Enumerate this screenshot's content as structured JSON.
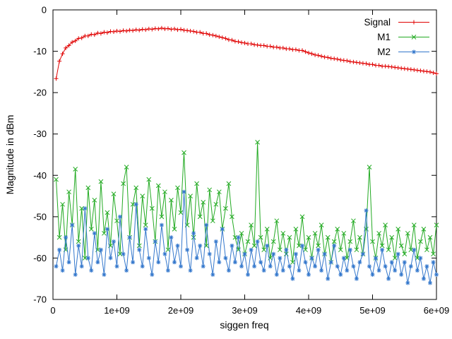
{
  "figure": {
    "background": "#ffffff"
  },
  "chart_data": {
    "type": "line",
    "title": "",
    "xlabel": "siggen freq",
    "ylabel": "Magnitude in dBm",
    "xlim": [
      0,
      6000000000
    ],
    "ylim": [
      -70,
      0
    ],
    "grid": false,
    "legend_position": "top-right",
    "x_tick_labels": [
      "0",
      "1e+09",
      "2e+09",
      "3e+09",
      "4e+09",
      "5e+09",
      "6e+09"
    ],
    "y_tick_labels": [
      "0",
      "-10",
      "-20",
      "-30",
      "-40",
      "-50",
      "-60",
      "-70"
    ],
    "x_unit": "Hz",
    "x_start_ghz": 0.05,
    "x_step_ghz": 0.05,
    "n_points": 120,
    "series": [
      {
        "name": "Signal",
        "color": "#e00000",
        "marker": "plus",
        "values": [
          -16.6,
          -12.4,
          -10.6,
          -9.2,
          -8.6,
          -7.8,
          -7.5,
          -6.9,
          -6.8,
          -6.3,
          -6.3,
          -5.9,
          -6.0,
          -5.6,
          -5.7,
          -5.4,
          -5.5,
          -5.2,
          -5.3,
          -5.1,
          -5.2,
          -5.0,
          -5.1,
          -4.9,
          -5.0,
          -4.8,
          -4.9,
          -4.7,
          -4.8,
          -4.6,
          -4.7,
          -4.5,
          -4.6,
          -4.4,
          -4.6,
          -4.5,
          -4.7,
          -4.6,
          -4.8,
          -4.7,
          -4.9,
          -5.0,
          -5.1,
          -5.2,
          -5.4,
          -5.4,
          -5.7,
          -5.7,
          -6.0,
          -6.1,
          -6.3,
          -6.5,
          -6.7,
          -6.9,
          -7.2,
          -7.3,
          -7.6,
          -7.7,
          -7.9,
          -8.0,
          -8.2,
          -8.2,
          -8.4,
          -8.5,
          -8.6,
          -8.6,
          -8.8,
          -8.8,
          -9.0,
          -9.0,
          -9.2,
          -9.2,
          -9.4,
          -9.4,
          -9.6,
          -9.6,
          -9.8,
          -9.8,
          -10.1,
          -10.4,
          -10.6,
          -10.9,
          -11.0,
          -11.2,
          -11.4,
          -11.5,
          -11.7,
          -11.8,
          -11.9,
          -12.1,
          -12.2,
          -12.3,
          -12.5,
          -12.6,
          -12.7,
          -12.8,
          -12.9,
          -13.0,
          -13.2,
          -13.2,
          -13.4,
          -13.4,
          -13.6,
          -13.6,
          -13.7,
          -13.8,
          -13.9,
          -14.0,
          -14.1,
          -14.2,
          -14.3,
          -14.4,
          -14.5,
          -14.6,
          -14.7,
          -14.8,
          -14.9,
          -15.0,
          -15.2,
          -15.4
        ]
      },
      {
        "name": "M1",
        "color": "#22aa22",
        "marker": "cross",
        "values": [
          -41,
          -55,
          -47,
          -58,
          -44,
          -52,
          -38.5,
          -56,
          -48,
          -60,
          -43,
          -53,
          -46,
          -58,
          -41.5,
          -54,
          -49,
          -57,
          -44.5,
          -51,
          -59,
          -42,
          -38,
          -55,
          -47,
          -43,
          -57,
          -45,
          -52,
          -41,
          -48,
          -56,
          -42.5,
          -50,
          -44,
          -58,
          -46,
          -53,
          -43,
          -49,
          -34.5,
          -52,
          -45,
          -55,
          -42,
          -50,
          -46.5,
          -57,
          -43.5,
          -51,
          -47,
          -44,
          -53,
          -48,
          -42,
          -50,
          -55,
          -58,
          -54,
          -59,
          -56,
          -52,
          -57,
          -32,
          -55,
          -58,
          -53,
          -60,
          -56,
          -51,
          -58,
          -54,
          -59,
          -55,
          -61,
          -53,
          -57,
          -50,
          -58,
          -55,
          -60,
          -54,
          -57,
          -52,
          -59,
          -55,
          -61,
          -56,
          -53,
          -58,
          -54,
          -60,
          -56,
          -51,
          -58,
          -55,
          -59,
          -53,
          -38,
          -56,
          -60,
          -54,
          -57,
          -52,
          -58,
          -55,
          -60,
          -53,
          -57,
          -59,
          -54,
          -58,
          -52,
          -60,
          -56,
          -53,
          -58,
          -55,
          -59,
          -52
        ]
      },
      {
        "name": "M2",
        "color": "#3377cc",
        "marker": "star",
        "values": [
          -62,
          -58,
          -63,
          -55,
          -61,
          -52,
          -64,
          -57,
          -62,
          -48,
          -60,
          -63,
          -54,
          -61,
          -58,
          -64,
          -53,
          -60,
          -56,
          -62,
          -50,
          -59,
          -63,
          -55,
          -61,
          -47,
          -58,
          -62,
          -53,
          -60,
          -64,
          -56,
          -61,
          -52,
          -59,
          -63,
          -55,
          -61,
          -57,
          -62,
          -44,
          -58,
          -63,
          -54,
          -60,
          -57,
          -62,
          -52,
          -59,
          -64,
          -56,
          -61,
          -53,
          -60,
          -63,
          -57,
          -61,
          -55,
          -62,
          -59,
          -64,
          -58,
          -62,
          -56,
          -61,
          -63,
          -57,
          -62,
          -59,
          -64,
          -60,
          -63,
          -58,
          -62,
          -65,
          -59,
          -63,
          -57,
          -61,
          -64,
          -60,
          -62,
          -58,
          -63,
          -59,
          -65,
          -61,
          -57,
          -62,
          -64,
          -60,
          -63,
          -58,
          -62,
          -65,
          -61,
          -59,
          -48.5,
          -62,
          -64,
          -60,
          -63,
          -58,
          -62,
          -65,
          -61,
          -63,
          -59,
          -64,
          -61,
          -66,
          -62,
          -58,
          -63,
          -60,
          -65,
          -62,
          -66,
          -61,
          -64
        ]
      }
    ]
  }
}
